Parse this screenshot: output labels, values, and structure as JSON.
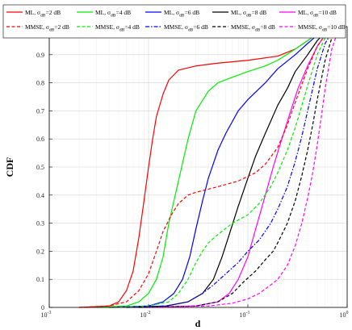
{
  "chart_data": {
    "type": "line",
    "title": "",
    "xlabel": "d",
    "ylabel": "CDF",
    "xscale": "log",
    "xlim": [
      0.001,
      1
    ],
    "ylim": [
      0,
      1
    ],
    "grid": true,
    "legend_position": "top",
    "x_tick_labels": [
      {
        "base": "10",
        "exp": "-3"
      },
      {
        "base": "10",
        "exp": "-2"
      },
      {
        "base": "10",
        "exp": "-1"
      },
      {
        "base": "10",
        "exp": "0"
      }
    ],
    "y_tick_labels": [
      "0",
      "0.1",
      "0.2",
      "0.3",
      "0.4",
      "0.5",
      "0.6",
      "0.7",
      "0.8",
      "0.9",
      "1"
    ],
    "series": [
      {
        "name_prefix": "ML, σ",
        "name_sub": "dB",
        "name_suffix": "=2 dB",
        "color": "#ff0000",
        "dash": "solid",
        "points": [
          [
            0.002,
            0
          ],
          [
            0.004,
            0.005
          ],
          [
            0.005,
            0.02
          ],
          [
            0.006,
            0.06
          ],
          [
            0.007,
            0.13
          ],
          [
            0.008,
            0.25
          ],
          [
            0.009,
            0.38
          ],
          [
            0.01,
            0.5
          ],
          [
            0.011,
            0.6
          ],
          [
            0.012,
            0.68
          ],
          [
            0.014,
            0.76
          ],
          [
            0.016,
            0.81
          ],
          [
            0.02,
            0.845
          ],
          [
            0.03,
            0.86
          ],
          [
            0.05,
            0.87
          ],
          [
            0.1,
            0.88
          ],
          [
            0.2,
            0.895
          ],
          [
            0.3,
            0.92
          ],
          [
            0.4,
            0.95
          ],
          [
            0.5,
            0.975
          ],
          [
            0.6,
            0.99
          ],
          [
            0.7,
            1
          ]
        ]
      },
      {
        "name_prefix": "ML, σ",
        "name_sub": "dB",
        "name_suffix": "=4 dB",
        "color": "#00ee00",
        "dash": "solid",
        "points": [
          [
            0.003,
            0
          ],
          [
            0.006,
            0.005
          ],
          [
            0.008,
            0.02
          ],
          [
            0.01,
            0.05
          ],
          [
            0.012,
            0.1
          ],
          [
            0.014,
            0.18
          ],
          [
            0.016,
            0.3
          ],
          [
            0.02,
            0.45
          ],
          [
            0.025,
            0.6
          ],
          [
            0.03,
            0.7
          ],
          [
            0.04,
            0.77
          ],
          [
            0.05,
            0.8
          ],
          [
            0.07,
            0.82
          ],
          [
            0.1,
            0.84
          ],
          [
            0.15,
            0.86
          ],
          [
            0.2,
            0.88
          ],
          [
            0.3,
            0.92
          ],
          [
            0.4,
            0.95
          ],
          [
            0.5,
            0.975
          ],
          [
            0.6,
            0.99
          ],
          [
            0.7,
            1
          ]
        ]
      },
      {
        "name_prefix": "ML, σ",
        "name_sub": "dB",
        "name_suffix": "=6 dB",
        "color": "#0000ff",
        "dash": "solid",
        "points": [
          [
            0.004,
            0
          ],
          [
            0.01,
            0.005
          ],
          [
            0.014,
            0.02
          ],
          [
            0.018,
            0.05
          ],
          [
            0.022,
            0.1
          ],
          [
            0.026,
            0.18
          ],
          [
            0.03,
            0.28
          ],
          [
            0.035,
            0.38
          ],
          [
            0.04,
            0.46
          ],
          [
            0.05,
            0.56
          ],
          [
            0.06,
            0.62
          ],
          [
            0.08,
            0.7
          ],
          [
            0.1,
            0.74
          ],
          [
            0.15,
            0.8
          ],
          [
            0.2,
            0.85
          ],
          [
            0.3,
            0.9
          ],
          [
            0.4,
            0.94
          ],
          [
            0.5,
            0.97
          ],
          [
            0.6,
            0.99
          ],
          [
            0.7,
            1
          ]
        ]
      },
      {
        "name_prefix": "ML, σ",
        "name_sub": "dB",
        "name_suffix": "=8 dB",
        "color": "#000000",
        "dash": "solid",
        "points": [
          [
            0.006,
            0
          ],
          [
            0.015,
            0.005
          ],
          [
            0.025,
            0.02
          ],
          [
            0.035,
            0.05
          ],
          [
            0.045,
            0.1
          ],
          [
            0.055,
            0.18
          ],
          [
            0.065,
            0.26
          ],
          [
            0.08,
            0.36
          ],
          [
            0.1,
            0.46
          ],
          [
            0.12,
            0.54
          ],
          [
            0.15,
            0.62
          ],
          [
            0.2,
            0.72
          ],
          [
            0.25,
            0.78
          ],
          [
            0.3,
            0.84
          ],
          [
            0.4,
            0.9
          ],
          [
            0.5,
            0.95
          ],
          [
            0.6,
            0.98
          ],
          [
            0.7,
            0.995
          ],
          [
            0.8,
            1
          ]
        ]
      },
      {
        "name_prefix": "ML, σ",
        "name_sub": "dB",
        "name_suffix": "=10 dB",
        "color": "#ff00ff",
        "dash": "solid",
        "points": [
          [
            0.008,
            0
          ],
          [
            0.03,
            0.005
          ],
          [
            0.05,
            0.02
          ],
          [
            0.065,
            0.05
          ],
          [
            0.08,
            0.1
          ],
          [
            0.1,
            0.18
          ],
          [
            0.12,
            0.28
          ],
          [
            0.15,
            0.4
          ],
          [
            0.18,
            0.5
          ],
          [
            0.22,
            0.6
          ],
          [
            0.27,
            0.7
          ],
          [
            0.32,
            0.78
          ],
          [
            0.4,
            0.86
          ],
          [
            0.5,
            0.93
          ],
          [
            0.6,
            0.97
          ],
          [
            0.7,
            0.99
          ],
          [
            0.8,
            1
          ]
        ]
      },
      {
        "name_prefix": "MMSE, σ",
        "name_sub": "dB",
        "name_suffix": "=2 dB",
        "color": "#ff0000",
        "dash": "dashed",
        "points": [
          [
            0.002,
            0
          ],
          [
            0.004,
            0.005
          ],
          [
            0.006,
            0.02
          ],
          [
            0.008,
            0.06
          ],
          [
            0.01,
            0.12
          ],
          [
            0.012,
            0.2
          ],
          [
            0.014,
            0.27
          ],
          [
            0.017,
            0.33
          ],
          [
            0.02,
            0.37
          ],
          [
            0.025,
            0.4
          ],
          [
            0.03,
            0.41
          ],
          [
            0.05,
            0.43
          ],
          [
            0.08,
            0.45
          ],
          [
            0.12,
            0.48
          ],
          [
            0.15,
            0.51
          ],
          [
            0.2,
            0.57
          ],
          [
            0.25,
            0.65
          ],
          [
            0.3,
            0.73
          ],
          [
            0.4,
            0.85
          ],
          [
            0.5,
            0.93
          ],
          [
            0.6,
            0.97
          ],
          [
            0.7,
            0.99
          ],
          [
            0.8,
            1
          ]
        ]
      },
      {
        "name_prefix": "MMSE, σ",
        "name_sub": "dB",
        "name_suffix": "=4 dB",
        "color": "#00ee00",
        "dash": "dashed",
        "points": [
          [
            0.004,
            0
          ],
          [
            0.01,
            0.005
          ],
          [
            0.016,
            0.02
          ],
          [
            0.02,
            0.05
          ],
          [
            0.025,
            0.1
          ],
          [
            0.03,
            0.16
          ],
          [
            0.035,
            0.2
          ],
          [
            0.04,
            0.23
          ],
          [
            0.05,
            0.26
          ],
          [
            0.07,
            0.3
          ],
          [
            0.1,
            0.33
          ],
          [
            0.13,
            0.37
          ],
          [
            0.17,
            0.43
          ],
          [
            0.2,
            0.48
          ],
          [
            0.25,
            0.56
          ],
          [
            0.3,
            0.64
          ],
          [
            0.35,
            0.72
          ],
          [
            0.4,
            0.79
          ],
          [
            0.5,
            0.9
          ],
          [
            0.6,
            0.96
          ],
          [
            0.7,
            0.99
          ],
          [
            0.8,
            1
          ]
        ]
      },
      {
        "name_prefix": "MMSE, σ",
        "name_sub": "dB",
        "name_suffix": "=6 dB",
        "color": "#0000ff",
        "dash": "dashdot",
        "points": [
          [
            0.006,
            0
          ],
          [
            0.015,
            0.005
          ],
          [
            0.025,
            0.02
          ],
          [
            0.035,
            0.05
          ],
          [
            0.045,
            0.08
          ],
          [
            0.06,
            0.12
          ],
          [
            0.08,
            0.16
          ],
          [
            0.1,
            0.2
          ],
          [
            0.13,
            0.24
          ],
          [
            0.17,
            0.3
          ],
          [
            0.2,
            0.35
          ],
          [
            0.25,
            0.43
          ],
          [
            0.3,
            0.52
          ],
          [
            0.35,
            0.61
          ],
          [
            0.4,
            0.7
          ],
          [
            0.5,
            0.85
          ],
          [
            0.6,
            0.94
          ],
          [
            0.7,
            0.98
          ],
          [
            0.8,
            1
          ]
        ]
      },
      {
        "name_prefix": "MMSE, σ",
        "name_sub": "dB",
        "name_suffix": "=8 dB",
        "color": "#000000",
        "dash": "dashed",
        "points": [
          [
            0.008,
            0
          ],
          [
            0.03,
            0.005
          ],
          [
            0.05,
            0.02
          ],
          [
            0.07,
            0.05
          ],
          [
            0.09,
            0.09
          ],
          [
            0.12,
            0.13
          ],
          [
            0.15,
            0.17
          ],
          [
            0.18,
            0.2
          ],
          [
            0.2,
            0.23
          ],
          [
            0.25,
            0.3
          ],
          [
            0.3,
            0.38
          ],
          [
            0.35,
            0.47
          ],
          [
            0.4,
            0.56
          ],
          [
            0.45,
            0.65
          ],
          [
            0.5,
            0.74
          ],
          [
            0.6,
            0.88
          ],
          [
            0.7,
            0.96
          ],
          [
            0.8,
            1
          ]
        ]
      },
      {
        "name_prefix": "MMSE, σ",
        "name_sub": "dB",
        "name_suffix": "=10 dB",
        "color": "#ff00ff",
        "dash": "dashed",
        "points": [
          [
            0.01,
            0
          ],
          [
            0.04,
            0.005
          ],
          [
            0.07,
            0.015
          ],
          [
            0.1,
            0.03
          ],
          [
            0.13,
            0.05
          ],
          [
            0.17,
            0.08
          ],
          [
            0.2,
            0.1
          ],
          [
            0.25,
            0.15
          ],
          [
            0.3,
            0.22
          ],
          [
            0.35,
            0.3
          ],
          [
            0.4,
            0.39
          ],
          [
            0.45,
            0.48
          ],
          [
            0.5,
            0.58
          ],
          [
            0.55,
            0.68
          ],
          [
            0.6,
            0.78
          ],
          [
            0.7,
            0.92
          ],
          [
            0.8,
            0.98
          ],
          [
            0.85,
            1
          ]
        ]
      }
    ]
  }
}
